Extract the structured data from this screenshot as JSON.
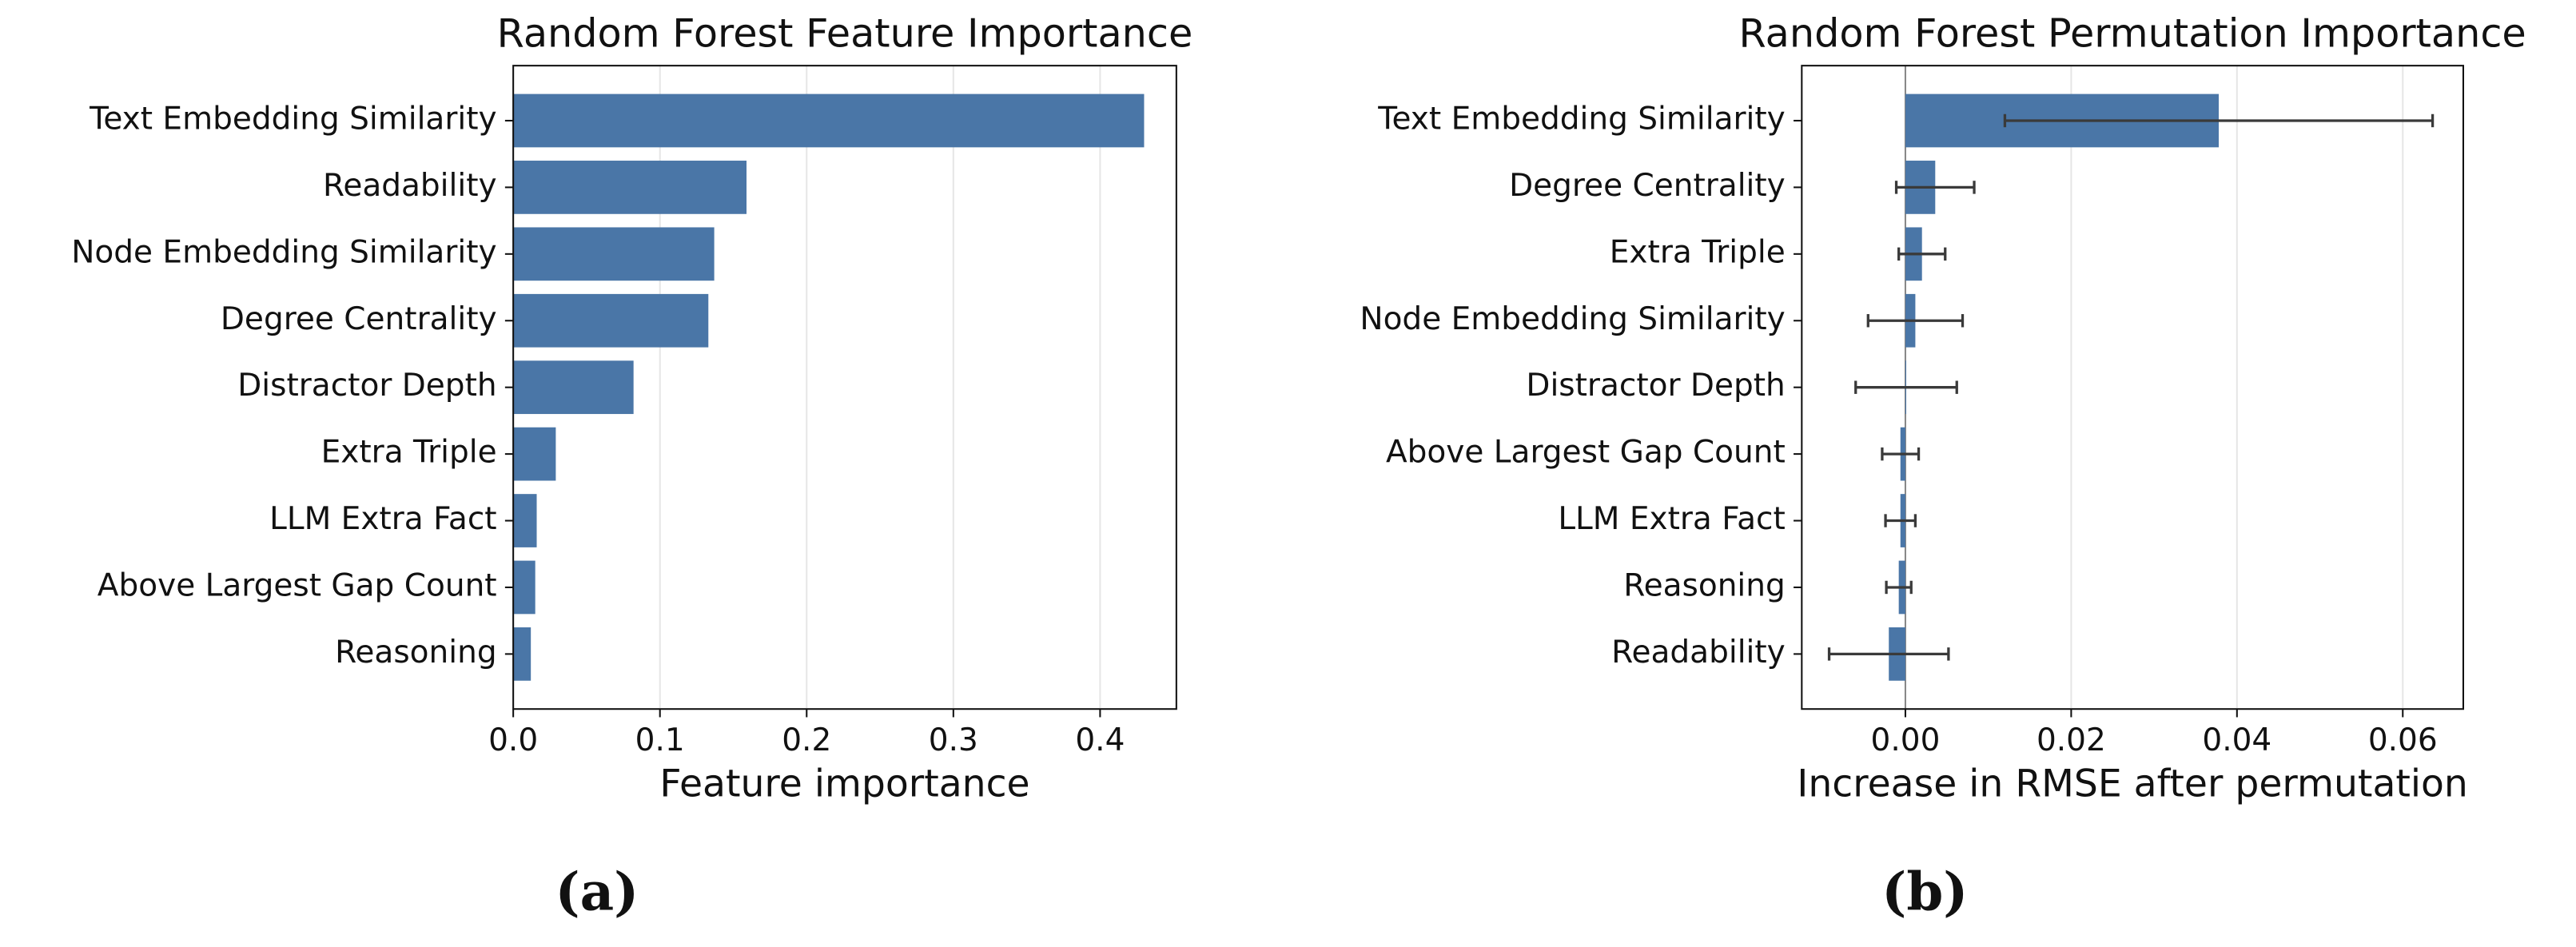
{
  "chart_data": [
    {
      "type": "barh",
      "title": "Random Forest Feature Importance",
      "x_label": "Feature importance",
      "panel_label": "(a)",
      "categories": [
        "Text Embedding Similarity",
        "Readability",
        "Node Embedding Similarity",
        "Degree Centrality",
        "Distractor Depth",
        "Extra Triple",
        "LLM Extra Fact",
        "Above Largest Gap Count",
        "Reasoning"
      ],
      "values": [
        0.43,
        0.159,
        0.137,
        0.133,
        0.082,
        0.029,
        0.016,
        0.015,
        0.012
      ],
      "color": "#4a76a7",
      "xlim": [
        0,
        0.452
      ],
      "xticks": [
        {
          "value": 0,
          "label": "0.0"
        },
        0.1,
        0.2,
        0.3,
        0.4
      ],
      "grid": true
    },
    {
      "type": "barh_error",
      "title": "Random Forest Permutation Importance",
      "x_label": "Increase in RMSE after permutation",
      "panel_label": "(b)",
      "categories": [
        "Text Embedding Similarity",
        "Degree Centrality",
        "Extra Triple",
        "Node Embedding Similarity",
        "Distractor Depth",
        "Above Largest Gap Count",
        "LLM Extra Fact",
        "Reasoning",
        "Readability"
      ],
      "values": [
        0.0378,
        0.0036,
        0.002,
        0.0012,
        0.0001,
        -0.0006,
        -0.0006,
        -0.0008,
        -0.002
      ],
      "errors": [
        0.0258,
        0.0047,
        0.0028,
        0.0057,
        0.0061,
        0.0022,
        0.0018,
        0.0015,
        0.0072
      ],
      "color": "#4a76a7",
      "xlim": [
        -0.0125,
        0.0673
      ],
      "xticks": [
        {
          "value": 0,
          "label": "0.00"
        },
        0.02,
        0.04,
        0.06
      ],
      "grid": true
    }
  ]
}
